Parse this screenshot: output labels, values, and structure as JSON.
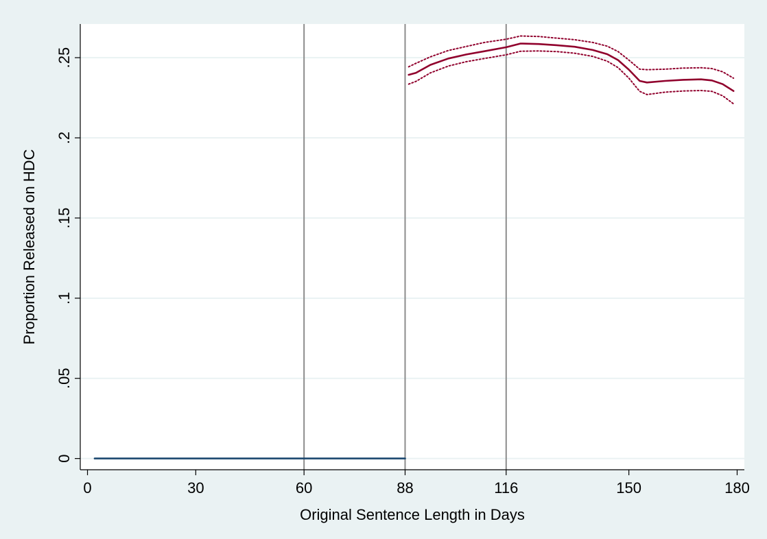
{
  "chart_data": {
    "type": "line",
    "title": "",
    "xlabel": "Original Sentence Length in Days",
    "ylabel": "Proportion Released on HDC",
    "xlim": [
      -2,
      182
    ],
    "ylim": [
      -0.007,
      0.271
    ],
    "x_ticks": [
      0,
      30,
      60,
      88,
      116,
      150,
      180
    ],
    "x_tick_labels": [
      "0",
      "30",
      "60",
      "88",
      "116",
      "150",
      "180"
    ],
    "y_ticks": [
      0,
      0.05,
      0.1,
      0.15,
      0.2,
      0.25
    ],
    "y_tick_labels": [
      "0",
      ".05",
      ".1",
      ".15",
      ".2",
      ".25"
    ],
    "grid": "horizontal",
    "legend": "none",
    "reference_lines_x": [
      60,
      88,
      116
    ],
    "colors": {
      "background": "#eaf2f3",
      "plot_area": "#ffffff",
      "grid": "#eaf2f3",
      "reference_line": "#8c8c8c",
      "series_low": "#1a476f",
      "series_high": "#90002c"
    },
    "series": [
      {
        "role": "fit-below",
        "style": "solid",
        "color": "#1a476f",
        "x": [
          2,
          88
        ],
        "y": [
          0,
          0
        ]
      },
      {
        "role": "fit-above",
        "style": "solid",
        "color": "#90002c",
        "x": [
          89,
          91,
          95,
          100,
          105,
          110,
          116,
          120,
          125,
          130,
          135,
          140,
          144,
          147,
          150,
          153,
          155,
          160,
          165,
          170,
          173,
          176,
          179
        ],
        "y": [
          0.2393,
          0.2405,
          0.2455,
          0.2495,
          0.252,
          0.254,
          0.2565,
          0.2588,
          0.2585,
          0.2578,
          0.2568,
          0.2548,
          0.2522,
          0.2485,
          0.2425,
          0.2355,
          0.2345,
          0.2355,
          0.2362,
          0.2365,
          0.2358,
          0.2335,
          0.2292
        ]
      },
      {
        "role": "ci-upper",
        "style": "dotted",
        "color": "#90002c",
        "x": [
          89,
          91,
          95,
          100,
          105,
          110,
          116,
          120,
          125,
          130,
          135,
          140,
          144,
          147,
          150,
          153,
          155,
          160,
          165,
          170,
          173,
          176,
          179
        ],
        "y": [
          0.2443,
          0.2465,
          0.2505,
          0.2545,
          0.257,
          0.2595,
          0.2615,
          0.2635,
          0.2632,
          0.2622,
          0.2612,
          0.2595,
          0.2572,
          0.2538,
          0.2485,
          0.2428,
          0.2425,
          0.2428,
          0.2435,
          0.2437,
          0.2432,
          0.2412,
          0.2372
        ]
      },
      {
        "role": "ci-lower",
        "style": "dotted",
        "color": "#90002c",
        "x": [
          89,
          91,
          95,
          100,
          105,
          110,
          116,
          120,
          125,
          130,
          135,
          140,
          144,
          147,
          150,
          153,
          155,
          160,
          165,
          170,
          173,
          176,
          179
        ],
        "y": [
          0.2335,
          0.2352,
          0.2405,
          0.2448,
          0.2475,
          0.2495,
          0.2518,
          0.254,
          0.2542,
          0.2538,
          0.2528,
          0.2508,
          0.2478,
          0.2438,
          0.2372,
          0.229,
          0.227,
          0.2285,
          0.2292,
          0.2295,
          0.229,
          0.2262,
          0.2212
        ]
      }
    ]
  }
}
